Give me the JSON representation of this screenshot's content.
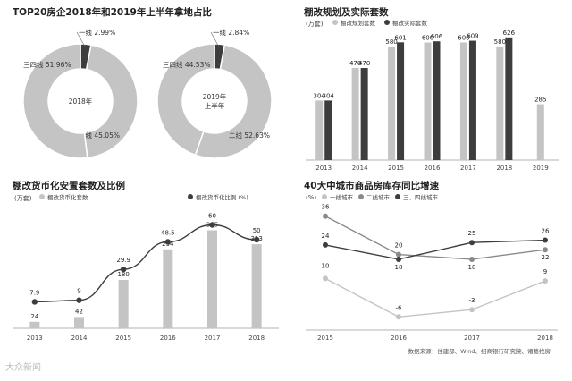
{
  "colors": {
    "light": "#c4c4c4",
    "dark": "#3d3d3d",
    "mid": "#8a8a8a",
    "axis": "#9a9a9a"
  },
  "chart_data": [
    {
      "type": "pie",
      "title": "TOP20房企2018年和2019年上半年拿地占比",
      "donuts": [
        {
          "center_label": "2018年",
          "slices": [
            {
              "label": "一线",
              "value": 2.99,
              "text": "一线 2.99%",
              "color": "#3d3d3d"
            },
            {
              "label": "二线",
              "value": 45.05,
              "text": "二线 45.05%",
              "color": "#c4c4c4"
            },
            {
              "label": "三四线",
              "value": 51.96,
              "text": "三四线 51.96%",
              "color": "#c4c4c4"
            }
          ]
        },
        {
          "center_label": "2019年\n上半年",
          "center_lines": [
            "2019年",
            "上半年"
          ],
          "slices": [
            {
              "label": "一线",
              "value": 2.84,
              "text": "一线 2.84%",
              "color": "#3d3d3d"
            },
            {
              "label": "二线",
              "value": 52.63,
              "text": "二线 52.63%",
              "color": "#c4c4c4"
            },
            {
              "label": "三四线",
              "value": 44.53,
              "text": "三四线 44.53%",
              "color": "#c4c4c4"
            }
          ]
        }
      ]
    },
    {
      "type": "bar",
      "title": "棚改规划及实际套数",
      "unit": "(万套)",
      "categories": [
        "2013",
        "2014",
        "2015",
        "2016",
        "2017",
        "2018",
        "2019"
      ],
      "series": [
        {
          "name": "棚改规划套数",
          "color": "#c4c4c4",
          "values": [
            304,
            470,
            580,
            600,
            600,
            580,
            285
          ]
        },
        {
          "name": "棚改实际套数",
          "color": "#3d3d3d",
          "values": [
            304,
            470,
            601,
            606,
            609,
            626,
            null
          ]
        }
      ],
      "ylim": [
        0,
        680
      ]
    },
    {
      "type": "bar",
      "title": "棚改货币化安置套数及比例",
      "unit": "(万套)",
      "categories": [
        "2013",
        "2014",
        "2015",
        "2016",
        "2017",
        "2018"
      ],
      "series": [
        {
          "name": "棚改货币化套数",
          "color": "#c4c4c4",
          "values": [
            24,
            42,
            180,
            294,
            365,
            313
          ],
          "ylim": [
            0,
            440
          ]
        },
        {
          "name": "棚改货币化比例 (%)",
          "color": "#3d3d3d",
          "type": "line",
          "values": [
            7.9,
            9,
            29.9,
            48.5,
            60,
            50
          ],
          "ylim": [
            -10,
            70
          ]
        }
      ]
    },
    {
      "type": "line",
      "title": "40大中城市商品房库存同比增速",
      "unit": "(%)",
      "x": [
        "2015",
        "2016",
        "2017",
        "2018"
      ],
      "series": [
        {
          "name": "一线城市",
          "color": "#c4c4c4",
          "values": [
            10,
            -6,
            -3,
            9
          ]
        },
        {
          "name": "二线城市",
          "color": "#8a8a8a",
          "values": [
            36,
            20,
            18,
            22
          ]
        },
        {
          "name": "三、四线城市",
          "color": "#3d3d3d",
          "values": [
            24,
            18,
            25,
            26
          ]
        }
      ],
      "ylim": [
        -10,
        40
      ]
    }
  ],
  "source": "数据来源：住建部、Wind、招商银行研究院、诸葛找房",
  "watermark": "大众新闻"
}
